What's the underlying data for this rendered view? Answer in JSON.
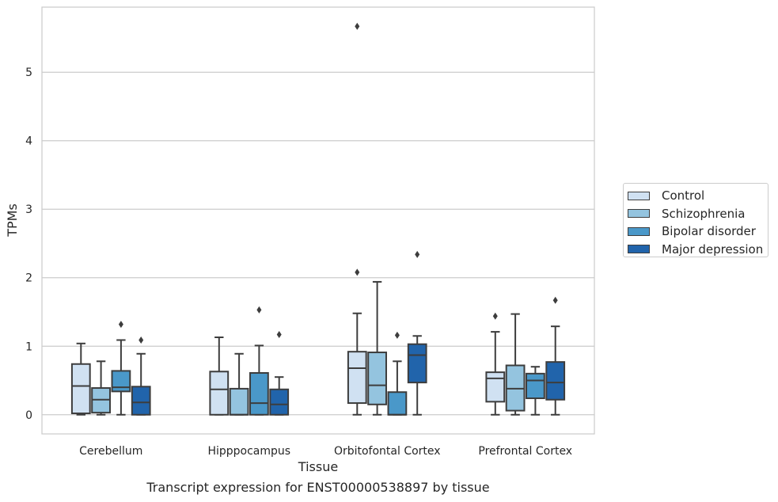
{
  "chart_data": {
    "type": "box",
    "xlabel": "Tissue",
    "ylabel": "TPMs",
    "caption": "Transcript expression for ENST00000538897 by tissue",
    "ylim": [
      -0.28,
      5.95
    ],
    "yticks": [
      "0",
      "1",
      "2",
      "3",
      "4",
      "5"
    ],
    "grid": "horizontal",
    "legend_position": "right",
    "categories": [
      "Cerebellum",
      "Hipppocampus",
      "Orbitofontal Cortex",
      "Prefrontal Cortex"
    ],
    "series": [
      {
        "name": "Control",
        "color": "#d0e1f2",
        "boxes": [
          {
            "whislo": 0.0,
            "q1": 0.02,
            "med": 0.42,
            "q3": 0.74,
            "whishi": 1.04,
            "fliers": []
          },
          {
            "whislo": 0.0,
            "q1": 0.0,
            "med": 0.37,
            "q3": 0.63,
            "whishi": 1.13,
            "fliers": []
          },
          {
            "whislo": 0.0,
            "q1": 0.17,
            "med": 0.68,
            "q3": 0.92,
            "whishi": 1.48,
            "fliers": [
              2.08,
              5.67
            ]
          },
          {
            "whislo": 0.0,
            "q1": 0.19,
            "med": 0.53,
            "q3": 0.62,
            "whishi": 1.21,
            "fliers": [
              1.44
            ]
          }
        ]
      },
      {
        "name": "Schizophrenia",
        "color": "#94c4df",
        "boxes": [
          {
            "whislo": 0.0,
            "q1": 0.03,
            "med": 0.22,
            "q3": 0.39,
            "whishi": 0.78,
            "fliers": []
          },
          {
            "whislo": 0.0,
            "q1": 0.0,
            "med": 0.0,
            "q3": 0.38,
            "whishi": 0.89,
            "fliers": []
          },
          {
            "whislo": 0.0,
            "q1": 0.15,
            "med": 0.43,
            "q3": 0.91,
            "whishi": 1.94,
            "fliers": []
          },
          {
            "whislo": 0.0,
            "q1": 0.06,
            "med": 0.38,
            "q3": 0.72,
            "whishi": 1.47,
            "fliers": []
          }
        ]
      },
      {
        "name": "Bipolar disorder",
        "color": "#4a98c9",
        "boxes": [
          {
            "whislo": 0.0,
            "q1": 0.34,
            "med": 0.4,
            "q3": 0.64,
            "whishi": 1.09,
            "fliers": [
              1.32
            ]
          },
          {
            "whislo": 0.0,
            "q1": 0.0,
            "med": 0.17,
            "q3": 0.61,
            "whishi": 1.01,
            "fliers": [
              1.53
            ]
          },
          {
            "whislo": 0.0,
            "q1": 0.0,
            "med": 0.0,
            "q3": 0.33,
            "whishi": 0.78,
            "fliers": [
              1.16
            ]
          },
          {
            "whislo": 0.0,
            "q1": 0.24,
            "med": 0.5,
            "q3": 0.6,
            "whishi": 0.7,
            "fliers": []
          }
        ]
      },
      {
        "name": "Major depression",
        "color": "#2164ab",
        "boxes": [
          {
            "whislo": 0.0,
            "q1": 0.0,
            "med": 0.18,
            "q3": 0.41,
            "whishi": 0.89,
            "fliers": [
              1.09
            ]
          },
          {
            "whislo": 0.0,
            "q1": 0.0,
            "med": 0.15,
            "q3": 0.37,
            "whishi": 0.55,
            "fliers": [
              1.17
            ]
          },
          {
            "whislo": 0.0,
            "q1": 0.47,
            "med": 0.87,
            "q3": 1.03,
            "whishi": 1.15,
            "fliers": [
              2.34
            ]
          },
          {
            "whislo": 0.0,
            "q1": 0.22,
            "med": 0.47,
            "q3": 0.77,
            "whishi": 1.29,
            "fliers": [
              1.67
            ]
          }
        ]
      }
    ]
  }
}
